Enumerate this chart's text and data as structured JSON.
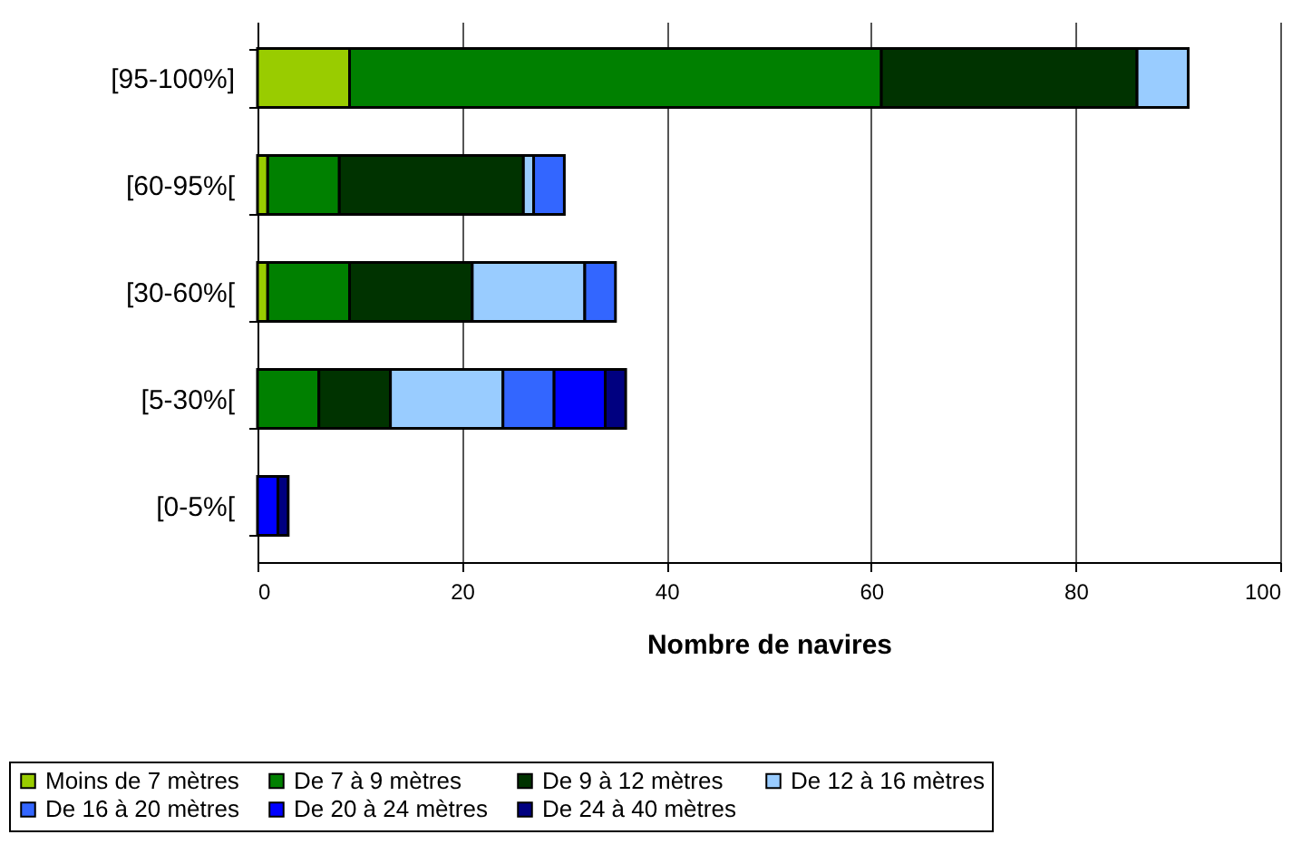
{
  "chart_data": {
    "type": "bar",
    "orientation": "horizontal",
    "stacked": true,
    "xlabel": "Nombre de navires",
    "categories": [
      "[95-100%]",
      "[60-95%[",
      "[30-60%[",
      "[5-30%[",
      "[0-5%["
    ],
    "xlim": [
      0,
      100
    ],
    "xticks": [
      0,
      20,
      40,
      60,
      80,
      100
    ],
    "grid": "x",
    "legend": "bottom",
    "series": [
      {
        "name": "Moins de 7 mètres",
        "color": "#99cc00",
        "values": [
          9,
          1,
          1,
          null,
          null
        ]
      },
      {
        "name": "De 7 à 9 mètres",
        "color": "#008000",
        "values": [
          52,
          7,
          8,
          6,
          null
        ]
      },
      {
        "name": "De 9 à 12 mètres",
        "color": "#003300",
        "values": [
          25,
          18,
          12,
          7,
          null
        ]
      },
      {
        "name": "De 12 à 16 mètres",
        "color": "#99ccff",
        "values": [
          5,
          1,
          11,
          11,
          null
        ]
      },
      {
        "name": "De 16 à 20 mètres",
        "color": "#3366ff",
        "values": [
          null,
          3,
          3,
          5,
          null
        ]
      },
      {
        "name": "De 20 à 24 mètres",
        "color": "#0000ff",
        "values": [
          null,
          null,
          null,
          5,
          2
        ]
      },
      {
        "name": "De 24 à 40 mètres",
        "color": "#000080",
        "values": [
          null,
          null,
          null,
          2,
          1
        ]
      }
    ]
  }
}
